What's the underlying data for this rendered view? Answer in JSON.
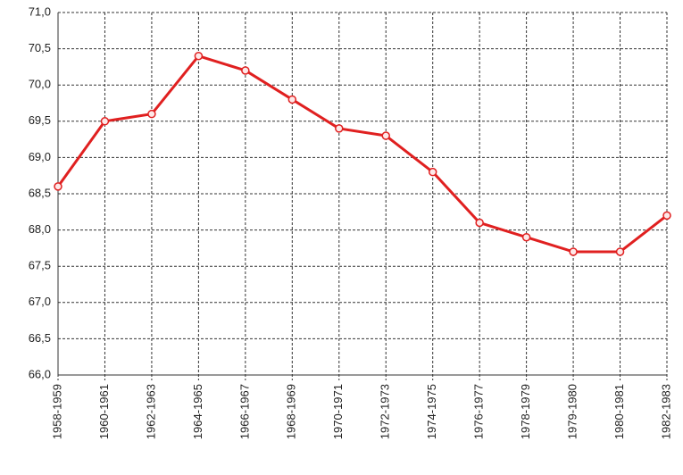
{
  "chart_data": {
    "type": "line",
    "categories": [
      "1958-1959",
      "1960-1961",
      "1962-1963",
      "1964-1965",
      "1966-1967",
      "1968-1969",
      "1970-1971",
      "1972-1973",
      "1974-1975",
      "1976-1977",
      "1978-1979",
      "1979-1980",
      "1980-1981",
      "1982-1983"
    ],
    "values": [
      68.6,
      69.5,
      69.6,
      70.4,
      70.2,
      69.8,
      69.4,
      69.3,
      68.8,
      68.1,
      67.9,
      67.7,
      67.7,
      68.2
    ],
    "color": "#e02020",
    "ylim": [
      66,
      71
    ],
    "yticks": [
      {
        "value": 66,
        "label": "66,0"
      },
      {
        "value": 66.5,
        "label": "66,5"
      },
      {
        "value": 67,
        "label": "67,0"
      },
      {
        "value": 67.5,
        "label": "67,5"
      },
      {
        "value": 68,
        "label": "68,0"
      },
      {
        "value": 68.5,
        "label": "68,5"
      },
      {
        "value": 69,
        "label": "69,0"
      },
      {
        "value": 69.5,
        "label": "69,5"
      },
      {
        "value": 70,
        "label": "70,0"
      },
      {
        "value": 70.5,
        "label": "70,5"
      },
      {
        "value": 71,
        "label": "71,0"
      }
    ],
    "grid": true
  }
}
